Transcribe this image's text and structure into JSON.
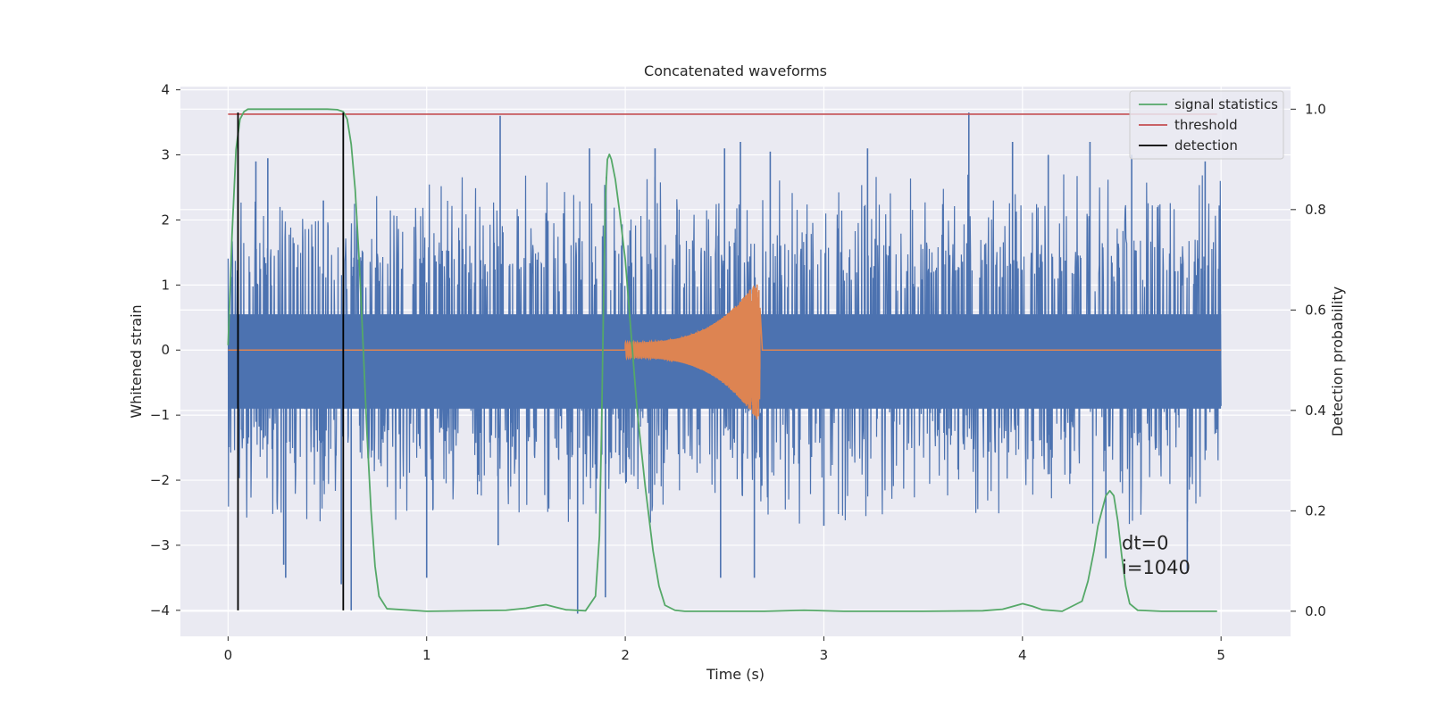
{
  "chart_data": {
    "type": "line",
    "title": "Concatenated waveforms",
    "xlabel": "Time (s)",
    "ylabel": "Whitened strain",
    "ylabel_right": "Detection probability",
    "xlim": [
      -0.24,
      5.35
    ],
    "ylim": [
      -4.4,
      4.05
    ],
    "ylim_right": [
      -0.05,
      1.045
    ],
    "x_ticks": [
      0,
      1,
      2,
      3,
      4,
      5
    ],
    "y_ticks": [
      -4,
      -3,
      -2,
      -1,
      0,
      1,
      2,
      3,
      4
    ],
    "y_ticks_right": [
      0.0,
      0.2,
      0.4,
      0.6,
      0.8,
      1.0
    ],
    "x_tick_labels": [
      "0",
      "1",
      "2",
      "3",
      "4",
      "5"
    ],
    "y_tick_labels": [
      "−4",
      "−3",
      "−2",
      "−1",
      "0",
      "1",
      "2",
      "3",
      "4"
    ],
    "y_tick_labels_right": [
      "0.0",
      "0.2",
      "0.4",
      "0.6",
      "0.8",
      "1.0"
    ],
    "grid": true,
    "legend_position": "top-right",
    "legend": [
      "signal statistics",
      "threshold",
      "detection"
    ],
    "annotations": [
      "dt=0",
      "i=1040"
    ],
    "colors": {
      "strain": "#4c72b0",
      "template": "#dd8452",
      "signal_statistics": "#55a868",
      "threshold": "#c44e52",
      "detection": "#000000",
      "background": "#eaeaf2"
    },
    "series": [
      {
        "name": "signal statistics",
        "axis": "right",
        "x": [
          0.0,
          0.02,
          0.04,
          0.06,
          0.08,
          0.1,
          0.15,
          0.2,
          0.3,
          0.4,
          0.5,
          0.55,
          0.58,
          0.6,
          0.62,
          0.64,
          0.66,
          0.68,
          0.7,
          0.72,
          0.74,
          0.76,
          0.8,
          1.0,
          1.4,
          1.5,
          1.55,
          1.6,
          1.65,
          1.7,
          1.8,
          1.85,
          1.87,
          1.88,
          1.89,
          1.9,
          1.91,
          1.92,
          1.93,
          1.95,
          1.97,
          2.0,
          2.03,
          2.06,
          2.1,
          2.14,
          2.17,
          2.2,
          2.25,
          2.3,
          2.5,
          2.7,
          2.9,
          3.1,
          3.5,
          3.8,
          3.9,
          4.0,
          4.05,
          4.1,
          4.2,
          4.3,
          4.33,
          4.36,
          4.38,
          4.4,
          4.42,
          4.44,
          4.46,
          4.48,
          4.5,
          4.52,
          4.54,
          4.58,
          4.7,
          4.98
        ],
        "values": [
          0.53,
          0.75,
          0.92,
          0.98,
          0.995,
          1.0,
          1.0,
          1.0,
          1.0,
          1.0,
          1.0,
          0.999,
          0.995,
          0.98,
          0.93,
          0.84,
          0.7,
          0.53,
          0.35,
          0.2,
          0.09,
          0.03,
          0.005,
          0.0,
          0.002,
          0.006,
          0.01,
          0.013,
          0.008,
          0.003,
          0.001,
          0.03,
          0.15,
          0.35,
          0.6,
          0.82,
          0.9,
          0.91,
          0.9,
          0.86,
          0.8,
          0.7,
          0.55,
          0.4,
          0.25,
          0.12,
          0.05,
          0.012,
          0.002,
          0.0,
          0.0,
          0.0,
          0.002,
          0.0,
          0.0,
          0.001,
          0.004,
          0.015,
          0.01,
          0.003,
          0.0,
          0.02,
          0.06,
          0.12,
          0.17,
          0.2,
          0.23,
          0.24,
          0.23,
          0.18,
          0.11,
          0.05,
          0.015,
          0.002,
          0.0,
          0.0
        ]
      },
      {
        "name": "threshold",
        "axis": "right",
        "x": [
          0.0,
          4.98
        ],
        "values": [
          0.99,
          0.99
        ]
      },
      {
        "name": "detection",
        "axis": "left",
        "segments": [
          {
            "x": 0.05,
            "y": [
              -4.0,
              3.65
            ]
          },
          {
            "x": 0.58,
            "y": [
              -4.0,
              3.65
            ]
          }
        ]
      },
      {
        "name": "",
        "axis": "left",
        "role": "whitened strain noise",
        "x_range": [
          0.0,
          5.0
        ],
        "dense_band": [
          -0.9,
          0.55
        ],
        "spikes_up": [
          [
            0.14,
            2.9
          ],
          [
            0.2,
            2.95
          ],
          [
            0.48,
            2.3
          ],
          [
            1.37,
            3.6
          ],
          [
            1.82,
            3.1
          ],
          [
            2.15,
            3.1
          ],
          [
            2.5,
            3.1
          ],
          [
            2.58,
            3.2
          ],
          [
            2.73,
            3.05
          ],
          [
            3.22,
            3.1
          ],
          [
            3.73,
            3.65
          ],
          [
            3.95,
            3.2
          ],
          [
            4.13,
            3.0
          ],
          [
            4.34,
            3.2
          ],
          [
            4.55,
            3.0
          ],
          [
            4.92,
            2.9
          ]
        ],
        "spikes_down": [
          [
            0.28,
            -3.3
          ],
          [
            0.29,
            -3.5
          ],
          [
            0.57,
            -3.6
          ],
          [
            0.62,
            -4.0
          ],
          [
            1.0,
            -3.5
          ],
          [
            1.36,
            -3.0
          ],
          [
            1.76,
            -4.05
          ],
          [
            1.9,
            -3.8
          ],
          [
            2.48,
            -3.5
          ],
          [
            2.65,
            -3.5
          ],
          [
            3.0,
            -2.7
          ],
          [
            4.42,
            -3.2
          ],
          [
            4.83,
            -3.4
          ]
        ]
      },
      {
        "name": "",
        "axis": "left",
        "role": "injected chirp",
        "x_range": [
          0.0,
          5.0
        ],
        "chirp": {
          "start": 2.0,
          "peak": 2.67,
          "end": 2.69,
          "peak_amplitude": 1.1,
          "start_amplitude": 0.12
        }
      }
    ]
  }
}
